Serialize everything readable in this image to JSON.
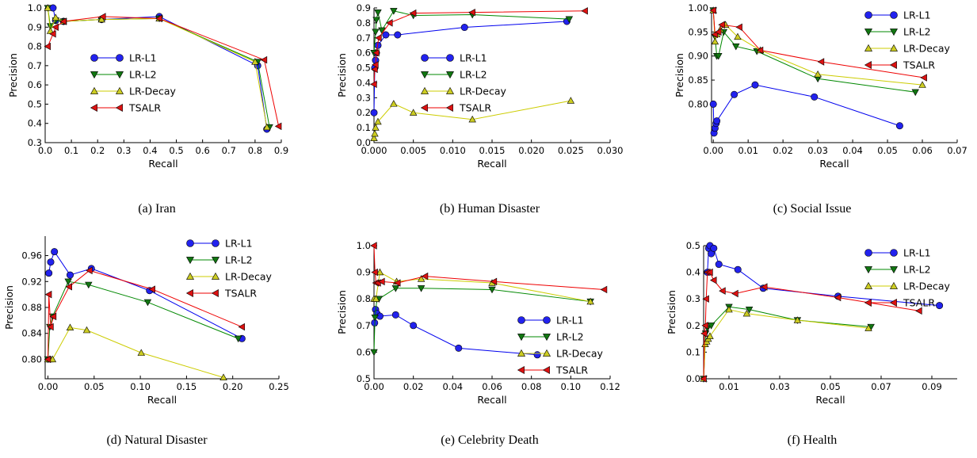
{
  "figure": {
    "captions": [
      "(a)  Iran",
      "(b)  Human Disaster",
      "(c)  Social Issue",
      "(d)  Natural Disaster",
      "(e)  Celebrity Death",
      "(f)  Health"
    ]
  },
  "series_styles": {
    "LR-L1": {
      "color": "#0000ee",
      "marker": "circle"
    },
    "LR-L2": {
      "color": "#008800",
      "marker": "triangle-down"
    },
    "LR-Decay": {
      "color": "#cccc00",
      "marker": "triangle-up"
    },
    "TSALR": {
      "color": "#ee0000",
      "marker": "triangle-left"
    }
  },
  "chart_data": [
    {
      "type": "line",
      "xlabel": "Recall",
      "ylabel": "Precision",
      "xlim": [
        0,
        0.9
      ],
      "ylim": [
        0.3,
        1.0
      ],
      "xticks": [
        0.0,
        0.1,
        0.2,
        0.3,
        0.4,
        0.5,
        0.6,
        0.7,
        0.8,
        0.9
      ],
      "xtick_labels": [
        "0.0",
        "0.1",
        "0.2",
        "0.3",
        "0.4",
        "0.5",
        "0.6",
        "0.7",
        "0.8",
        "0.9"
      ],
      "yticks": [
        0.3,
        0.4,
        0.5,
        0.6,
        0.7,
        0.8,
        0.9,
        1.0
      ],
      "ytick_labels": [
        "0.3",
        "0.4",
        "0.5",
        "0.6",
        "0.7",
        "0.8",
        "0.9",
        "1.0"
      ],
      "legend_pos": "center-left",
      "series": [
        {
          "name": "LR-L1",
          "x": [
            0.03,
            0.04,
            0.07,
            0.215,
            0.435,
            0.81,
            0.845
          ],
          "y": [
            1.0,
            0.935,
            0.93,
            0.94,
            0.955,
            0.7,
            0.37
          ]
        },
        {
          "name": "LR-L2",
          "x": [
            0.01,
            0.02,
            0.04,
            0.07,
            0.215,
            0.435,
            0.81,
            0.855
          ],
          "y": [
            1.0,
            0.905,
            0.935,
            0.93,
            0.94,
            0.945,
            0.72,
            0.38
          ]
        },
        {
          "name": "LR-Decay",
          "x": [
            0.01,
            0.02,
            0.04,
            0.07,
            0.215,
            0.435,
            0.8,
            0.845
          ],
          "y": [
            1.0,
            0.88,
            0.95,
            0.93,
            0.94,
            0.945,
            0.72,
            0.38
          ]
        },
        {
          "name": "TSALR",
          "x": [
            0.01,
            0.03,
            0.04,
            0.07,
            0.22,
            0.435,
            0.835,
            0.89
          ],
          "y": [
            0.8,
            0.865,
            0.9,
            0.93,
            0.955,
            0.945,
            0.73,
            0.385
          ]
        }
      ]
    },
    {
      "type": "line",
      "xlabel": "Recall",
      "ylabel": "Precision",
      "xlim": [
        0,
        0.03
      ],
      "ylim": [
        0,
        0.9
      ],
      "xticks": [
        0.0,
        0.005,
        0.01,
        0.015,
        0.02,
        0.025,
        0.03
      ],
      "xtick_labels": [
        "0.000",
        "0.005",
        "0.010",
        "0.015",
        "0.020",
        "0.025",
        "0.030"
      ],
      "yticks": [
        0,
        0.1,
        0.2,
        0.3,
        0.4,
        0.5,
        0.6,
        0.7,
        0.8,
        0.9
      ],
      "ytick_labels": [
        "0.0",
        "0.1",
        "0.2",
        "0.3",
        "0.4",
        "0.5",
        "0.6",
        "0.7",
        "0.8",
        "0.9"
      ],
      "legend_pos": "center-right",
      "series": [
        {
          "name": "LR-L1",
          "x": [
            0.0,
            0.0001,
            0.0002,
            0.0003,
            0.0005,
            0.0015,
            0.003,
            0.0115,
            0.0245
          ],
          "y": [
            0.2,
            0.5,
            0.55,
            0.6,
            0.65,
            0.72,
            0.72,
            0.77,
            0.81
          ]
        },
        {
          "name": "LR-L2",
          "x": [
            0.0,
            0.0002,
            0.0003,
            0.0005,
            0.001,
            0.0025,
            0.005,
            0.0125,
            0.0248
          ],
          "y": [
            0.6,
            0.74,
            0.82,
            0.87,
            0.75,
            0.88,
            0.85,
            0.855,
            0.825
          ]
        },
        {
          "name": "LR-Decay",
          "x": [
            0.0,
            0.0001,
            0.0002,
            0.0005,
            0.0025,
            0.005,
            0.0125,
            0.025
          ],
          "y": [
            0.03,
            0.06,
            0.1,
            0.14,
            0.26,
            0.2,
            0.155,
            0.28
          ]
        },
        {
          "name": "TSALR",
          "x": [
            0.0,
            0.0001,
            0.0002,
            0.0003,
            0.0006,
            0.002,
            0.005,
            0.0125,
            0.0268
          ],
          "y": [
            0.39,
            0.49,
            0.52,
            0.6,
            0.7,
            0.8,
            0.865,
            0.87,
            0.88
          ]
        }
      ]
    },
    {
      "type": "line",
      "xlabel": "Recall",
      "ylabel": "Precision",
      "xlim": [
        -0.0005,
        0.07
      ],
      "ylim": [
        0.72,
        1.0
      ],
      "xticks": [
        0.0,
        0.01,
        0.02,
        0.03,
        0.04,
        0.05,
        0.06,
        0.07
      ],
      "xtick_labels": [
        "0.00",
        "0.01",
        "0.02",
        "0.03",
        "0.04",
        "0.05",
        "0.06",
        "0.07"
      ],
      "yticks": [
        0.8,
        0.85,
        0.9,
        0.95,
        1.0
      ],
      "ytick_labels": [
        "0.80",
        "0.85",
        "0.90",
        "0.95",
        "1.00"
      ],
      "legend_pos": "top-right",
      "series": [
        {
          "name": "LR-L1",
          "x": [
            0.0,
            0.0002,
            0.0005,
            0.0008,
            0.001,
            0.006,
            0.012,
            0.029,
            0.0535
          ],
          "y": [
            0.8,
            0.74,
            0.75,
            0.76,
            0.765,
            0.82,
            0.84,
            0.815,
            0.755
          ]
        },
        {
          "name": "LR-L2",
          "x": [
            0.0,
            0.0005,
            0.001,
            0.0015,
            0.003,
            0.0065,
            0.0125,
            0.03,
            0.058
          ],
          "y": [
            0.995,
            0.94,
            0.9,
            0.9,
            0.95,
            0.92,
            0.91,
            0.853,
            0.825
          ]
        },
        {
          "name": "LR-Decay",
          "x": [
            0.0,
            0.0005,
            0.001,
            0.002,
            0.0035,
            0.007,
            0.0135,
            0.03,
            0.06
          ],
          "y": [
            0.995,
            0.93,
            0.945,
            0.955,
            0.965,
            0.94,
            0.912,
            0.862,
            0.84
          ]
        },
        {
          "name": "TSALR",
          "x": [
            0.0,
            0.0005,
            0.0015,
            0.0025,
            0.0075,
            0.0135,
            0.031,
            0.0605
          ],
          "y": [
            0.995,
            0.945,
            0.95,
            0.965,
            0.96,
            0.912,
            0.888,
            0.855
          ]
        }
      ]
    },
    {
      "type": "line",
      "xlabel": "Recall",
      "ylabel": "Precision",
      "xlim": [
        -0.003,
        0.25
      ],
      "ylim": [
        0.77,
        0.99
      ],
      "xticks": [
        0.0,
        0.05,
        0.1,
        0.15,
        0.2,
        0.25
      ],
      "xtick_labels": [
        "0.00",
        "0.05",
        "0.10",
        "0.15",
        "0.20",
        "0.25"
      ],
      "yticks": [
        0.8,
        0.84,
        0.88,
        0.92,
        0.96
      ],
      "ytick_labels": [
        "0.80",
        "0.84",
        "0.88",
        "0.92",
        "0.96"
      ],
      "legend_pos": "top-right",
      "series": [
        {
          "name": "LR-L1",
          "x": [
            0.001,
            0.003,
            0.007,
            0.024,
            0.047,
            0.11,
            0.21
          ],
          "y": [
            0.933,
            0.95,
            0.966,
            0.93,
            0.94,
            0.906,
            0.832
          ]
        },
        {
          "name": "LR-L2",
          "x": [
            0.0,
            0.002,
            0.005,
            0.022,
            0.044,
            0.108,
            0.206
          ],
          "y": [
            0.8,
            0.85,
            0.866,
            0.92,
            0.915,
            0.888,
            0.832
          ]
        },
        {
          "name": "LR-Decay",
          "x": [
            0.0,
            0.002,
            0.005,
            0.024,
            0.042,
            0.101,
            0.19
          ],
          "y": [
            0.8,
            0.8,
            0.8,
            0.849,
            0.845,
            0.81,
            0.772
          ]
        },
        {
          "name": "TSALR",
          "x": [
            0.0,
            0.001,
            0.003,
            0.006,
            0.023,
            0.045,
            0.113,
            0.21
          ],
          "y": [
            0.8,
            0.9,
            0.85,
            0.866,
            0.912,
            0.937,
            0.908,
            0.85
          ]
        }
      ]
    },
    {
      "type": "line",
      "xlabel": "Recall",
      "ylabel": "Precision",
      "xlim": [
        0,
        0.12
      ],
      "ylim": [
        0.5,
        1.0
      ],
      "xticks": [
        0.0,
        0.02,
        0.04,
        0.06,
        0.08,
        0.1,
        0.12
      ],
      "xtick_labels": [
        "0.00",
        "0.02",
        "0.04",
        "0.06",
        "0.08",
        "0.10",
        "0.12"
      ],
      "yticks": [
        0.5,
        0.6,
        0.7,
        0.8,
        0.9,
        1.0
      ],
      "ytick_labels": [
        "0.5",
        "0.6",
        "0.7",
        "0.8",
        "0.9",
        "1.0"
      ],
      "legend_pos": "bottom-right",
      "series": [
        {
          "name": "LR-L1",
          "x": [
            0.0003,
            0.0008,
            0.0015,
            0.003,
            0.011,
            0.02,
            0.043,
            0.083
          ],
          "y": [
            0.71,
            0.76,
            0.745,
            0.735,
            0.74,
            0.7,
            0.615,
            0.59
          ]
        },
        {
          "name": "LR-L2",
          "x": [
            0.0,
            0.0005,
            0.0015,
            0.0025,
            0.011,
            0.024,
            0.06,
            0.11
          ],
          "y": [
            0.6,
            0.73,
            0.8,
            0.8,
            0.84,
            0.84,
            0.835,
            0.79
          ]
        },
        {
          "name": "LR-Decay",
          "x": [
            0.0,
            0.001,
            0.003,
            0.0115,
            0.024,
            0.06,
            0.11
          ],
          "y": [
            0.8,
            0.8,
            0.9,
            0.865,
            0.875,
            0.86,
            0.79
          ]
        },
        {
          "name": "TSALR",
          "x": [
            0.0,
            0.0005,
            0.001,
            0.002,
            0.004,
            0.012,
            0.026,
            0.061,
            0.117
          ],
          "y": [
            1.0,
            0.9,
            0.86,
            0.86,
            0.865,
            0.86,
            0.885,
            0.865,
            0.835
          ]
        }
      ]
    },
    {
      "type": "line",
      "xlabel": "Recall",
      "ylabel": "Precision",
      "xlim": [
        0,
        0.1
      ],
      "ylim": [
        0,
        0.5
      ],
      "xticks": [
        0.01,
        0.03,
        0.05,
        0.07,
        0.09
      ],
      "xtick_labels": [
        "0.01",
        "0.03",
        "0.05",
        "0.07",
        "0.09"
      ],
      "yticks": [
        0,
        0.1,
        0.2,
        0.3,
        0.4,
        0.5
      ],
      "ytick_labels": [
        "0.0",
        "0.1",
        "0.2",
        "0.3",
        "0.4",
        "0.5"
      ],
      "legend_pos": "top-right",
      "series": [
        {
          "name": "LR-L1",
          "x": [
            0.0015,
            0.002,
            0.0025,
            0.003,
            0.004,
            0.006,
            0.0135,
            0.0235,
            0.053,
            0.093
          ],
          "y": [
            0.4,
            0.49,
            0.5,
            0.47,
            0.49,
            0.43,
            0.41,
            0.34,
            0.31,
            0.275
          ]
        },
        {
          "name": "LR-L2",
          "x": [
            0.0,
            0.0008,
            0.0015,
            0.003,
            0.01,
            0.018,
            0.037,
            0.066
          ],
          "y": [
            0.0,
            0.17,
            0.19,
            0.2,
            0.27,
            0.26,
            0.22,
            0.195
          ]
        },
        {
          "name": "LR-Decay",
          "x": [
            0.0,
            0.0006,
            0.0012,
            0.0018,
            0.0025,
            0.01,
            0.017,
            0.037,
            0.065
          ],
          "y": [
            0.0,
            0.13,
            0.14,
            0.15,
            0.16,
            0.26,
            0.245,
            0.22,
            0.19
          ]
        },
        {
          "name": "TSALR",
          "x": [
            0.0,
            0.0003,
            0.0007,
            0.001,
            0.0015,
            0.0025,
            0.004,
            0.0075,
            0.0125,
            0.024,
            0.053,
            0.085
          ],
          "y": [
            0.0,
            0.17,
            0.2,
            0.3,
            0.4,
            0.4,
            0.37,
            0.33,
            0.32,
            0.345,
            0.305,
            0.255
          ]
        }
      ]
    }
  ]
}
